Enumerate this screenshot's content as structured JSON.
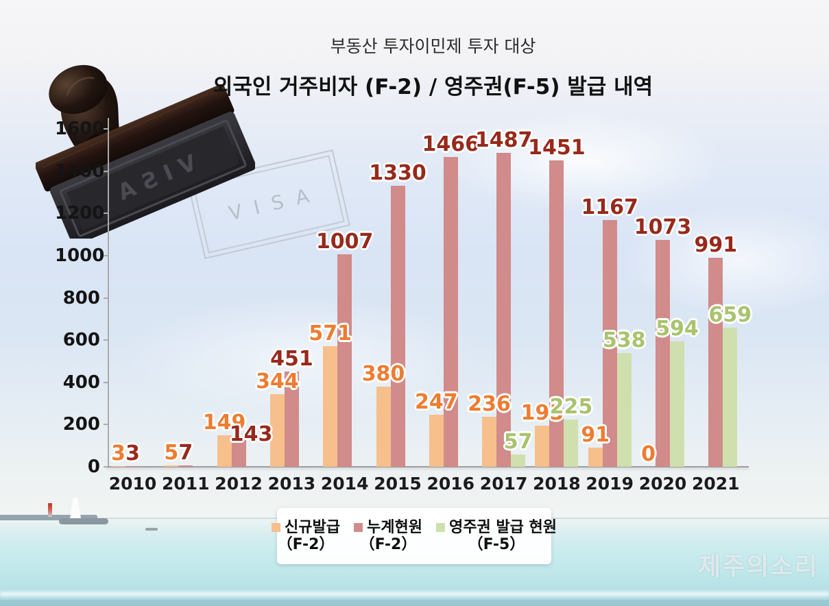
{
  "header": {
    "subtitle": "부동산 투자이민제 투자 대상",
    "title": "외국인 거주비자 (F-2) / 영주권(F-5) 발급 내역"
  },
  "stamp": {
    "face_text": "VISA",
    "imprint_text": "VISA"
  },
  "watermark": {
    "text": "제주의소리"
  },
  "chart_data": {
    "type": "bar",
    "title": "외국인 거주비자 (F-2) / 영주권(F-5) 발급 내역",
    "subtitle": "부동산 투자이민제 투자 대상",
    "categories": [
      "2010",
      "2011",
      "2012",
      "2013",
      "2014",
      "2015",
      "2016",
      "2017",
      "2018",
      "2019",
      "2020",
      "2021"
    ],
    "series": [
      {
        "name": "신규발급 (F-2)",
        "legend_label": "신규발급",
        "legend_sub": "（F-2）",
        "color": "#f6bf8c",
        "label_color": "#ed7d31",
        "values": [
          3,
          5,
          149,
          344,
          571,
          380,
          247,
          236,
          195,
          91,
          0,
          null
        ]
      },
      {
        "name": "누계현원 (F-2)",
        "legend_label": "누계현원",
        "legend_sub": "（F-2）",
        "color": "#d08b8a",
        "label_color": "#97291b",
        "values": [
          3,
          7,
          143,
          451,
          1007,
          1330,
          1466,
          1487,
          1451,
          1167,
          1073,
          991
        ]
      },
      {
        "name": "영주권 발급 현원 (F-5)",
        "legend_label": "영주권 발급 현원",
        "legend_sub": "（F-5）",
        "color": "#d0dfae",
        "label_color": "#a9c36e",
        "values": [
          null,
          null,
          null,
          null,
          null,
          null,
          null,
          57,
          225,
          538,
          594,
          659
        ]
      }
    ],
    "ylim": [
      0,
      1600
    ],
    "yticks": [
      0,
      200,
      400,
      600,
      800,
      1000,
      1200,
      1400,
      1600
    ],
    "grid": false,
    "legend_position": "bottom"
  }
}
